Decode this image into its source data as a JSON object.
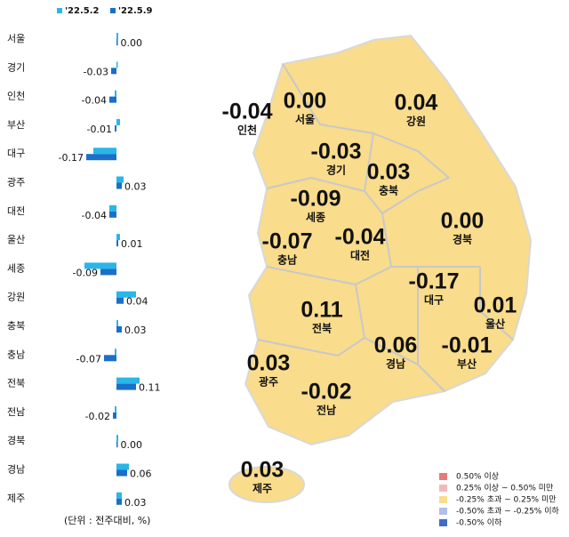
{
  "chart_data": {
    "type": "bar",
    "orientation": "horizontal",
    "categories": [
      "서울",
      "경기",
      "인천",
      "부산",
      "대구",
      "광주",
      "대전",
      "울산",
      "세종",
      "강원",
      "충북",
      "충남",
      "전북",
      "전남",
      "경북",
      "경남",
      "제주"
    ],
    "series": [
      {
        "name": "'22.5.2",
        "color": "#29b6e8",
        "values": [
          0.01,
          0.0,
          -0.01,
          0.02,
          -0.13,
          0.04,
          -0.04,
          0.02,
          -0.18,
          0.11,
          0.01,
          -0.01,
          0.13,
          -0.01,
          0.01,
          0.07,
          0.03
        ]
      },
      {
        "name": "'22.5.9",
        "color": "#1a6fc9",
        "values": [
          0.0,
          -0.03,
          -0.04,
          -0.01,
          -0.17,
          0.03,
          -0.04,
          0.01,
          -0.09,
          0.04,
          0.03,
          -0.07,
          0.11,
          -0.02,
          0.0,
          0.06,
          0.03
        ],
        "value_labels": [
          "0.00",
          "-0.03",
          "-0.04",
          "-0.01",
          "-0.17",
          "0.03",
          "-0.04",
          "0.01",
          "-0.09",
          "0.04",
          "0.03",
          "-0.07",
          "0.11",
          "-0.02",
          "0.00",
          "0.06",
          "0.03"
        ]
      }
    ],
    "xlim": [
      -0.2,
      0.2
    ],
    "unit_note": "(단위 : 전주대비, %)",
    "map_fill": "#f9dc8c",
    "map_legend": [
      {
        "label": "0.50% 이상",
        "color": "#e57b7b"
      },
      {
        "label": "0.25% 이상 ~ 0.50% 미만",
        "color": "#f3b9b9"
      },
      {
        "label": "-0.25% 초과 ~ 0.25% 미만",
        "color": "#f9dc8c"
      },
      {
        "label": "-0.50% 초과 ~ -0.25% 이하",
        "color": "#b3bfe8"
      },
      {
        "label": "-0.50% 이하",
        "color": "#3f6cc4"
      }
    ]
  }
}
